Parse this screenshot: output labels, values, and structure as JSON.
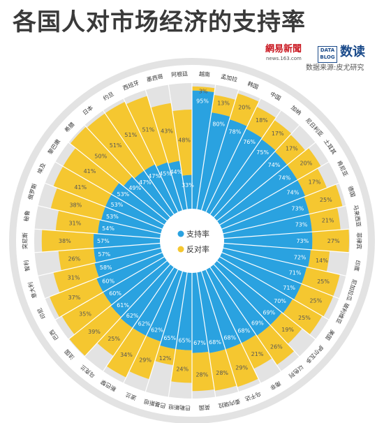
{
  "header": {
    "title": "各国人对市场经济的支持率",
    "brand_netease": "網易新聞",
    "brand_netease_url": "news.163.com",
    "brand_datablog_line1": "DATA",
    "brand_datablog_line2": "BLOG",
    "brand_shudu": "数读",
    "source": "数据来源:皮尤研究"
  },
  "colors": {
    "support": "#2aa2e0",
    "oppose": "#f5c730",
    "ring_bg": "#f5c730",
    "outer_ring": "#e3e3e3",
    "label_bg": "#ffffff"
  },
  "chart_data": {
    "type": "radial-bar",
    "series": [
      {
        "name": "支持率",
        "color": "#2aa2e0"
      },
      {
        "name": "反对率",
        "color": "#f5c730"
      }
    ],
    "legend": {
      "support": "支持率",
      "oppose": "反对率",
      "placement": "center"
    },
    "categories": [
      "越南",
      "孟加拉",
      "韩国",
      "中国",
      "加纳",
      "尼日利亚",
      "土耳其",
      "肯尼亚",
      "德国",
      "马来西亚",
      "菲律宾",
      "印度",
      "尼加拉瓜",
      "玻利维亚",
      "美国",
      "萨尔瓦多",
      "以色列",
      "南非",
      "乌干达",
      "委内瑞拉",
      "英国",
      "巴勒斯坦",
      "巴基斯坦",
      "波兰",
      "新巴黎",
      "乌克兰",
      "法国",
      "巴西",
      "印尼",
      "意大利",
      "智利",
      "突尼斯",
      "秘鲁",
      "俄罗斯",
      "埃及",
      "黎巴嫩",
      "希腊",
      "日本",
      "约旦",
      "西班牙",
      "墨西哥",
      "阿根廷"
    ],
    "support": [
      "95%",
      "80%",
      "78%",
      "76%",
      "75%",
      "74%",
      "74%",
      "74%",
      "73%",
      "73%",
      "73%",
      "72%",
      "71%",
      "71%",
      "70%",
      "69%",
      "69%",
      "68%",
      "68%",
      "68%",
      "67%",
      "65%",
      "65%",
      "62%",
      "62%",
      "62%",
      "61%",
      "60%",
      "60%",
      "58%",
      "57%",
      "57%",
      "54%",
      "53%",
      "53%",
      "53%",
      "49%",
      "47%",
      "47%",
      "45%",
      "44%",
      "33%"
    ],
    "oppose": [
      "3%",
      "13%",
      "20%",
      "18%",
      "17%",
      "17%",
      "20%",
      "17%",
      "25%",
      "21%",
      "27%",
      "14%",
      "25%",
      "25%",
      "25%",
      "19%",
      "26%",
      "21%",
      "29%",
      "28%",
      "28%",
      "24%",
      "12%",
      "29%",
      "34%",
      "25%",
      "39%",
      "35%",
      "37%",
      "31%",
      "26%",
      "38%",
      "31%",
      "38%",
      "41%",
      "41%",
      "50%",
      "51%",
      "51%",
      "51%",
      "43%",
      "48%"
    ]
  }
}
